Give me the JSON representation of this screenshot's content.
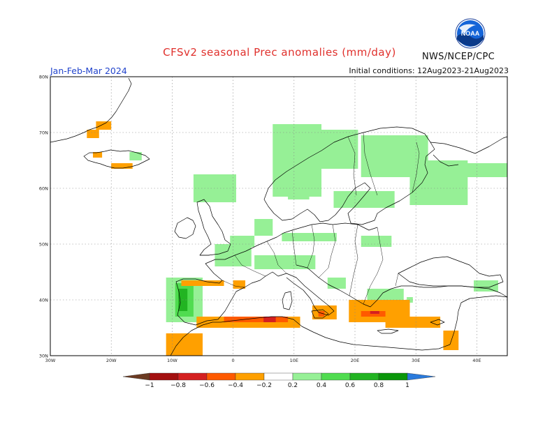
{
  "header": {
    "title": "CFSv2 seasonal Prec anomalies (mm/day)",
    "agency": "NWS/NCEP/CPC",
    "season": "Jan-Feb-Mar 2024",
    "initial_conditions": "Initial conditions: 12Aug2023-21Aug2023",
    "logo_text": "NOAA"
  },
  "map": {
    "region": "Europe",
    "lon_range": [
      -30,
      45
    ],
    "lat_range": [
      30,
      80
    ],
    "grid": true,
    "lat_ticks": [
      {
        "value": 80,
        "label": "80N"
      },
      {
        "value": 70,
        "label": "70N"
      },
      {
        "value": 60,
        "label": "60N"
      },
      {
        "value": 50,
        "label": "50N"
      },
      {
        "value": 40,
        "label": "40N"
      },
      {
        "value": 30,
        "label": "30N"
      }
    ],
    "lon_ticks": [
      {
        "value": -30,
        "label": "30W"
      },
      {
        "value": -20,
        "label": "20W"
      },
      {
        "value": -10,
        "label": "10W"
      },
      {
        "value": 0,
        "label": "0"
      },
      {
        "value": 10,
        "label": "10E"
      },
      {
        "value": 20,
        "label": "20E"
      },
      {
        "value": 30,
        "label": "30E"
      },
      {
        "value": 40,
        "label": "40E"
      }
    ]
  },
  "colorbar": {
    "labels": [
      "−1",
      "−0.8",
      "−0.6",
      "−0.4",
      "−0.2",
      "0.2",
      "0.4",
      "0.6",
      "0.8",
      "1"
    ],
    "colors": {
      "lt_-1": "#6b3a22",
      "-1_-0.8": "#a31010",
      "-0.8_-0.6": "#d42020",
      "-0.6_-0.4": "#ff5a00",
      "-0.4_-0.2": "#ffa000",
      "-0.2_0.2": "#ffffff",
      "0.2_0.4": "#96f096",
      "0.4_0.6": "#50dc50",
      "0.6_0.8": "#22b422",
      "0.8_1": "#0a960a",
      "gt_1": "#2a7adc"
    }
  },
  "anomaly_regions": [
    {
      "level": "0.2_0.4",
      "lons": [
        -6.5,
        0.5
      ],
      "lats": [
        57.5,
        62.5
      ]
    },
    {
      "level": "0.2_0.4",
      "lons": [
        -0.5,
        3.5
      ],
      "lats": [
        49.5,
        51.5
      ]
    },
    {
      "level": "0.2_0.4",
      "lons": [
        -11,
        -5
      ],
      "lats": [
        36,
        44
      ]
    },
    {
      "level": "0.2_0.4",
      "lons": [
        6.5,
        14.5
      ],
      "lats": [
        58.5,
        71.5
      ]
    },
    {
      "level": "0.2_0.4",
      "lons": [
        14,
        20.5
      ],
      "lats": [
        63.5,
        70.5
      ]
    },
    {
      "level": "0.2_0.4",
      "lons": [
        21,
        32
      ],
      "lats": [
        62,
        69.5
      ]
    },
    {
      "level": "0.2_0.4",
      "lons": [
        29,
        38.5
      ],
      "lats": [
        57,
        65
      ]
    },
    {
      "level": "0.2_0.4",
      "lons": [
        38,
        45
      ],
      "lats": [
        62,
        64.5
      ]
    },
    {
      "level": "0.2_0.4",
      "lons": [
        16.5,
        26.5
      ],
      "lats": [
        56.5,
        59.5
      ]
    },
    {
      "level": "0.2_0.4",
      "lons": [
        9,
        12.5
      ],
      "lats": [
        58,
        60
      ]
    },
    {
      "level": "0.2_0.4",
      "lons": [
        3.5,
        6.5
      ],
      "lats": [
        51.5,
        54.5
      ]
    },
    {
      "level": "0.2_0.4",
      "lons": [
        8,
        17
      ],
      "lats": [
        50.5,
        52
      ]
    },
    {
      "level": "0.2_0.4",
      "lons": [
        21,
        26
      ],
      "lats": [
        49.5,
        51.5
      ]
    },
    {
      "level": "0.2_0.4",
      "lons": [
        -3,
        3
      ],
      "lats": [
        46,
        50
      ]
    },
    {
      "level": "0.2_0.4",
      "lons": [
        3.5,
        13.5
      ],
      "lats": [
        45.5,
        48
      ]
    },
    {
      "level": "0.2_0.4",
      "lons": [
        15.5,
        18.5
      ],
      "lats": [
        42,
        44
      ]
    },
    {
      "level": "0.2_0.4",
      "lons": [
        22,
        28
      ],
      "lats": [
        40,
        42
      ]
    },
    {
      "level": "0.2_0.4",
      "lons": [
        39.5,
        43.5
      ],
      "lats": [
        41.5,
        43.5
      ]
    },
    {
      "level": "0.2_0.4",
      "lons": [
        -17,
        -15
      ],
      "lats": [
        65,
        66.5
      ]
    },
    {
      "level": "0.2_0.4",
      "lons": [
        28.5,
        29.5
      ],
      "lats": [
        39.5,
        40.5
      ]
    },
    {
      "level": "0.4_0.6",
      "lons": [
        -9.5,
        -6.5
      ],
      "lats": [
        37,
        43
      ]
    },
    {
      "level": "0.6_0.8",
      "lons": [
        -9,
        -7.5
      ],
      "lats": [
        38,
        42
      ]
    },
    {
      "level": "-0.4_-0.2",
      "lons": [
        -8.5,
        -1.5
      ],
      "lats": [
        42.5,
        43.5
      ]
    },
    {
      "level": "-0.4_-0.2",
      "lons": [
        0,
        2
      ],
      "lats": [
        42,
        43.5
      ]
    },
    {
      "level": "-0.4_-0.2",
      "lons": [
        -6,
        11
      ],
      "lats": [
        35,
        37
      ]
    },
    {
      "level": "-0.4_-0.2",
      "lons": [
        -11,
        -5
      ],
      "lats": [
        30,
        34
      ]
    },
    {
      "level": "-0.4_-0.2",
      "lons": [
        13,
        17
      ],
      "lats": [
        36.5,
        39
      ]
    },
    {
      "level": "-0.4_-0.2",
      "lons": [
        19,
        29
      ],
      "lats": [
        36,
        40
      ]
    },
    {
      "level": "-0.4_-0.2",
      "lons": [
        25,
        34
      ],
      "lats": [
        35,
        37
      ]
    },
    {
      "level": "-0.4_-0.2",
      "lons": [
        34.5,
        37
      ],
      "lats": [
        31,
        34.5
      ]
    },
    {
      "level": "-0.4_-0.2",
      "lons": [
        -22.5,
        -20
      ],
      "lats": [
        70.5,
        72
      ]
    },
    {
      "level": "-0.4_-0.2",
      "lons": [
        -24,
        -22
      ],
      "lats": [
        69,
        70.5
      ]
    },
    {
      "level": "-0.4_-0.2",
      "lons": [
        -20,
        -16.5
      ],
      "lats": [
        63.5,
        64.5
      ]
    },
    {
      "level": "-0.4_-0.2",
      "lons": [
        -23,
        -21.5
      ],
      "lats": [
        65.5,
        66.5
      ]
    },
    {
      "level": "-0.6_-0.4",
      "lons": [
        -1.5,
        9
      ],
      "lats": [
        36,
        37
      ]
    },
    {
      "level": "-0.6_-0.4",
      "lons": [
        21,
        25
      ],
      "lats": [
        37,
        38
      ]
    },
    {
      "level": "-0.6_-0.4",
      "lons": [
        14,
        15
      ],
      "lats": [
        37,
        38
      ]
    },
    {
      "level": "-0.8_-0.6",
      "lons": [
        5,
        7
      ],
      "lats": [
        36,
        37
      ]
    },
    {
      "level": "-0.8_-0.6",
      "lons": [
        22.5,
        24
      ],
      "lats": [
        37.5,
        38
      ]
    }
  ]
}
